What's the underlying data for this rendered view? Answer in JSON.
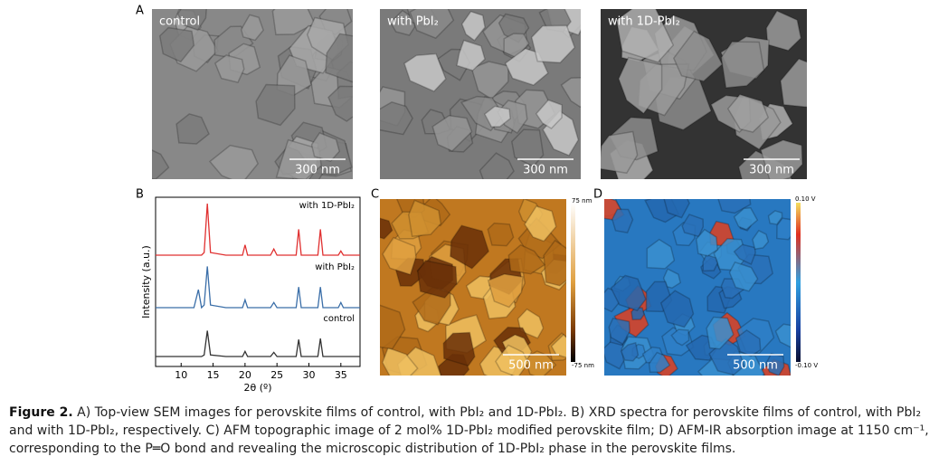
{
  "panel_a": {
    "label": "A",
    "images": [
      {
        "label": "control",
        "scale_bar": "300 nm"
      },
      {
        "label": "with PbI₂",
        "scale_bar": "300 nm"
      },
      {
        "label": "with 1D-PbI₂",
        "scale_bar": "300 nm"
      }
    ]
  },
  "chart_data": {
    "type": "line",
    "panel_label": "B",
    "x_label": "2θ (º)",
    "y_label": "Intensity (a.u.)",
    "xlim": [
      6,
      38
    ],
    "xticks": [
      10,
      15,
      20,
      25,
      30,
      35
    ],
    "x": [
      6,
      8,
      12,
      12.7,
      13.2,
      13.6,
      14.1,
      14.6,
      17,
      19.6,
      20,
      20.4,
      24,
      24.5,
      25,
      28,
      28.4,
      28.8,
      31.4,
      31.8,
      32.2,
      34.6,
      35,
      35.4,
      38
    ],
    "series": [
      {
        "name": "with 1D-PbI₂",
        "color": "#e03030",
        "values": [
          0,
          0,
          0,
          0,
          0,
          0.5,
          10,
          0.5,
          0,
          0,
          2,
          0,
          0,
          1.2,
          0,
          0,
          5,
          0,
          0,
          5,
          0,
          0,
          0.8,
          0,
          0
        ]
      },
      {
        "name": "with PbI₂",
        "color": "#3a6ea8",
        "values": [
          0,
          0,
          0,
          3.5,
          0,
          0.5,
          8,
          0.5,
          0,
          0,
          1.5,
          0,
          0,
          1,
          0,
          0,
          4,
          0,
          0,
          4,
          0,
          0,
          1,
          0,
          0
        ]
      },
      {
        "name": "control",
        "color": "#333333",
        "values": [
          0,
          0,
          0,
          0,
          0,
          0.3,
          5,
          0.3,
          0,
          0,
          1,
          0,
          0,
          0.8,
          0,
          0,
          3.3,
          0,
          0,
          3.5,
          0,
          0,
          0,
          0,
          0
        ]
      }
    ]
  },
  "panel_c": {
    "label": "C",
    "scale_bar": "500 nm",
    "colorbar_max": "75 nm",
    "colorbar_min": "-75 nm"
  },
  "panel_d": {
    "label": "D",
    "scale_bar": "500 nm",
    "colorbar_max": "0.10 V",
    "colorbar_min": "-0.10 V"
  },
  "caption": {
    "label": "Figure 2.",
    "text": "A) Top-view SEM images for perovskite films of control, with PbI₂ and 1D-PbI₂. B) XRD spectra for perovskite films of control, with PbI₂ and with 1D-PbI₂, respectively. C) AFM topographic image of 2 mol% 1D-PbI₂ modified perovskite film; D) AFM-IR absorption image at 1150 cm⁻¹, corresponding to the P═O bond and revealing the microscopic distribution of 1D-PbI₂ phase in the perovskite films."
  }
}
